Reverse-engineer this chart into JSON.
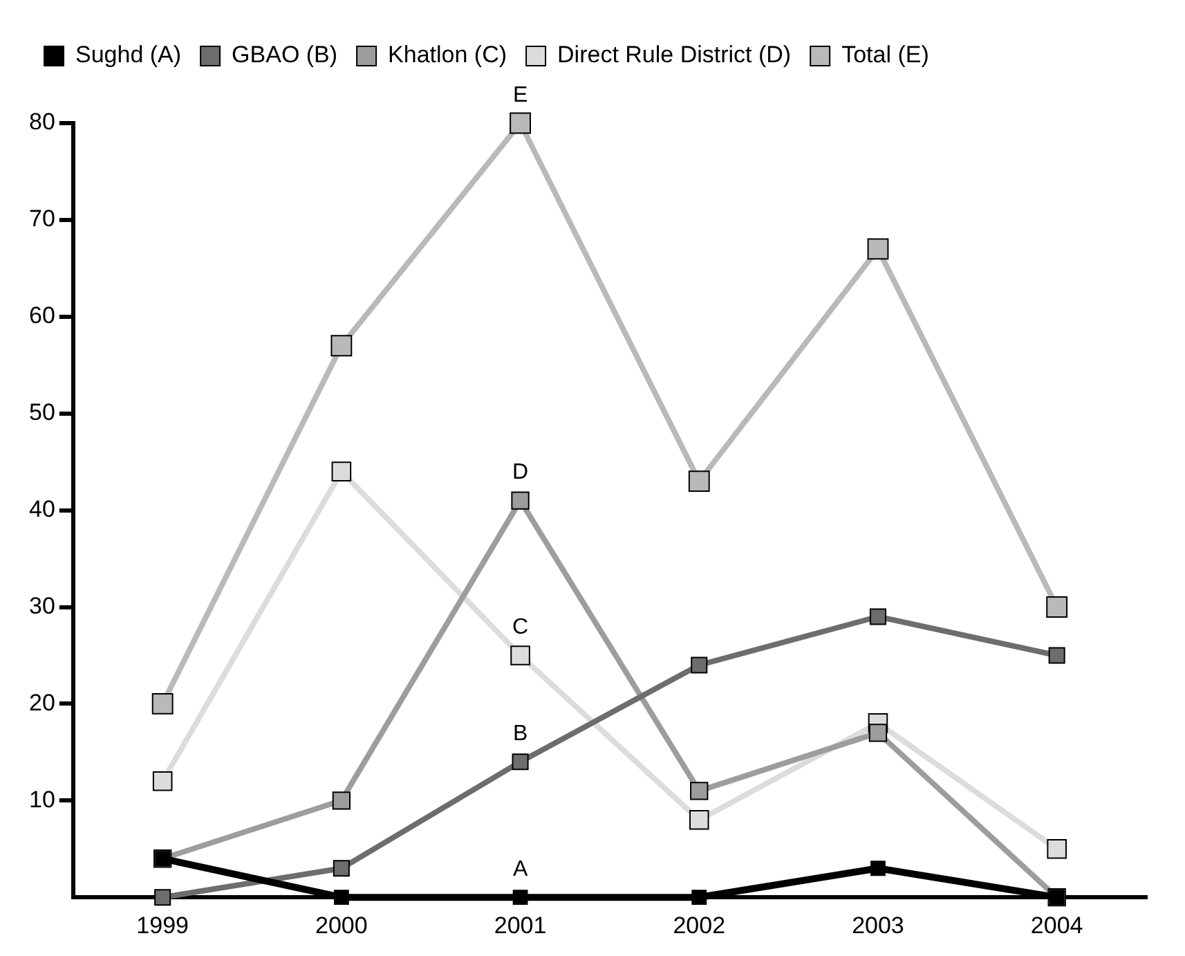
{
  "chart_data": {
    "type": "line",
    "categories": [
      "1999",
      "2000",
      "2001",
      "2002",
      "2003",
      "2004"
    ],
    "series": [
      {
        "name": "Sughd (A)",
        "color": "#000000",
        "values": [
          4,
          0,
          0,
          0,
          3,
          0
        ]
      },
      {
        "name": "GBAO (B)",
        "color": "#6d6d6f",
        "values": [
          0,
          3,
          14,
          24,
          29,
          25
        ]
      },
      {
        "name": "Khatlon (C)",
        "color": "#9d9d9f",
        "values": [
          4,
          10,
          41,
          11,
          17,
          0
        ]
      },
      {
        "name": "Direct Rule District (D)",
        "color": "#dcdcdc",
        "values": [
          12,
          44,
          25,
          8,
          18,
          5
        ]
      },
      {
        "name": "Total (E)",
        "color": "#b9b9bb",
        "values": [
          20,
          57,
          80,
          43,
          67,
          30
        ]
      }
    ],
    "ylim": [
      0,
      80
    ],
    "yticks": [
      10,
      20,
      30,
      40,
      50,
      60,
      70,
      80
    ],
    "annotations": [
      {
        "text": "A",
        "x": "2001",
        "y": 0
      },
      {
        "text": "B",
        "x": "2001",
        "y": 14
      },
      {
        "text": "C",
        "x": "2001",
        "y": 25
      },
      {
        "text": "D",
        "x": "2001",
        "y": 41
      },
      {
        "text": "E",
        "x": "2001",
        "y": 80
      }
    ],
    "grid": false,
    "legend": "top left",
    "marker": "square",
    "line_style": "solid"
  }
}
